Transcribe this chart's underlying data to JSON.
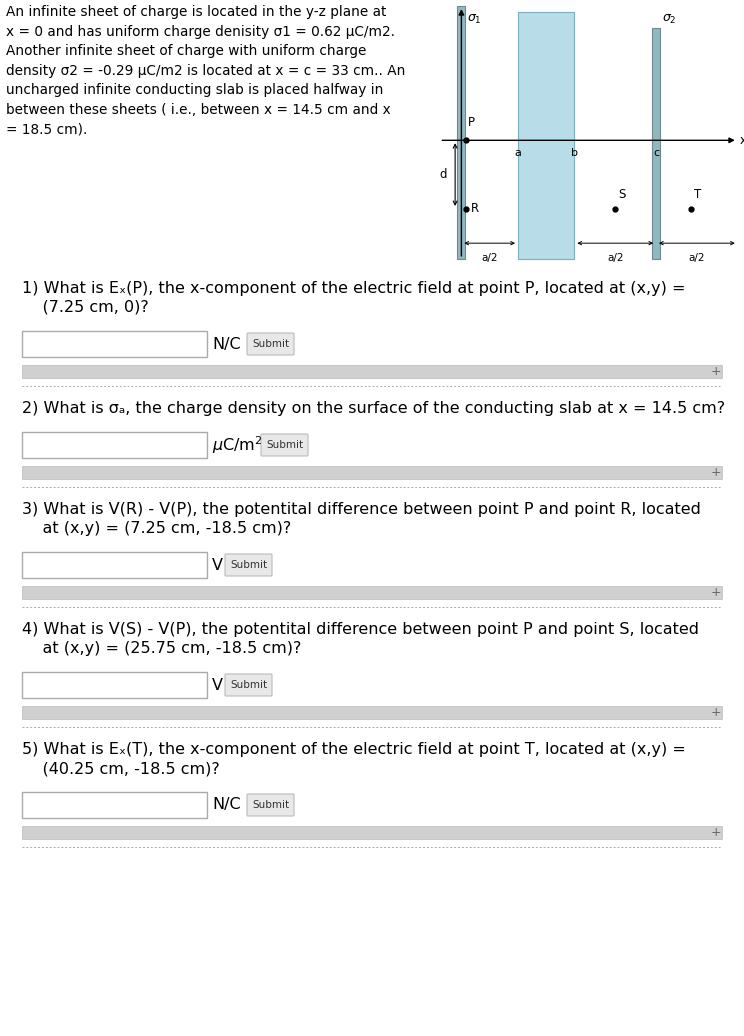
{
  "bg_color": "#ffffff",
  "fig_width": 7.44,
  "fig_height": 10.36,
  "desc_lines": [
    "An infinite sheet of charge is located in the y-z plane at",
    "x = 0 and has uniform charge denisity σ1 = 0.62 µC/m2.",
    "Another infinite sheet of charge with uniform charge",
    "density σ2 = -0.29 µC/m2 is located at x = c = 33 cm.. An",
    "uncharged infinite conducting slab is placed halfway in",
    "between these sheets ( i.e., between x = 14.5 cm and x",
    "= 18.5 cm)."
  ],
  "q1_line1": "1) What is E",
  "q1_sub": "x",
  "q1_line1b": "(P), the x-component of the electric field at point P, located at (x,y) =",
  "q1_line2": "    (7.25 cm, 0)?",
  "q1_unit": "N/C",
  "q2_line1": "2) What is σ",
  "q2_sub": "a",
  "q2_line1b": ", the charge density on the surface of the conducting slab at x = 14.5 cm?",
  "q2_unit": "µC/m²",
  "q3_line1": "3) What is V(R) - V(P), the potentital difference between point P and point R, located",
  "q3_line2": "    at (x,y) = (7.25 cm, -18.5 cm)?",
  "q3_unit": "V",
  "q4_line1": "4) What is V(S) - V(P), the potentital difference between point P and point S, located",
  "q4_line2": "    at (x,y) = (25.75 cm, -18.5 cm)?",
  "q4_unit": "V",
  "q5_line1": "5) What is E",
  "q5_sub": "x",
  "q5_line1b": "(T), the x-component of the electric field at point T, located at (x,y) =",
  "q5_line2": "    (40.25 cm, -18.5 cm)?",
  "q5_unit": "N/C",
  "slab_color": "#b8dce8",
  "slab_edge_color": "#7ab0c0",
  "sheet_color": "#90b8c0",
  "sheet_edge_color": "#708890"
}
